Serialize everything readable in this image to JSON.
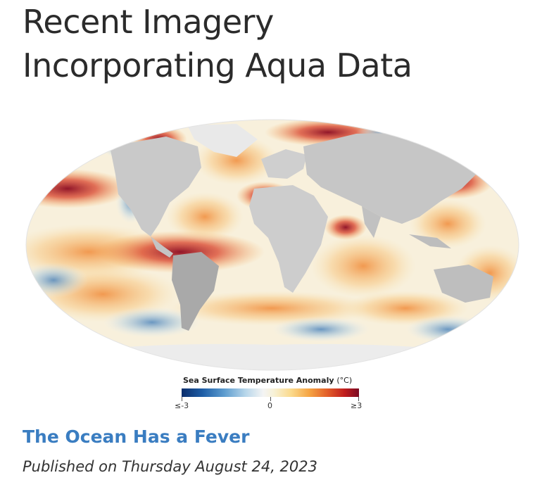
{
  "section": {
    "title_line1": "Recent Imagery",
    "title_line2": "Incorporating Aqua Data"
  },
  "map": {
    "land_color": "#c9c9c9",
    "ocean_neutral_color": "#f6f1e6",
    "warm_color": "#b5122a",
    "cool_color": "#1f5fa8"
  },
  "legend": {
    "title": "Sea Surface Temperature Anomaly",
    "unit": "(°C)",
    "min_label": "≤-3",
    "mid_label": "0",
    "max_label": "≥3"
  },
  "story": {
    "title": "The Ocean Has a Fever",
    "published": "Published on Thursday August 24, 2023"
  }
}
